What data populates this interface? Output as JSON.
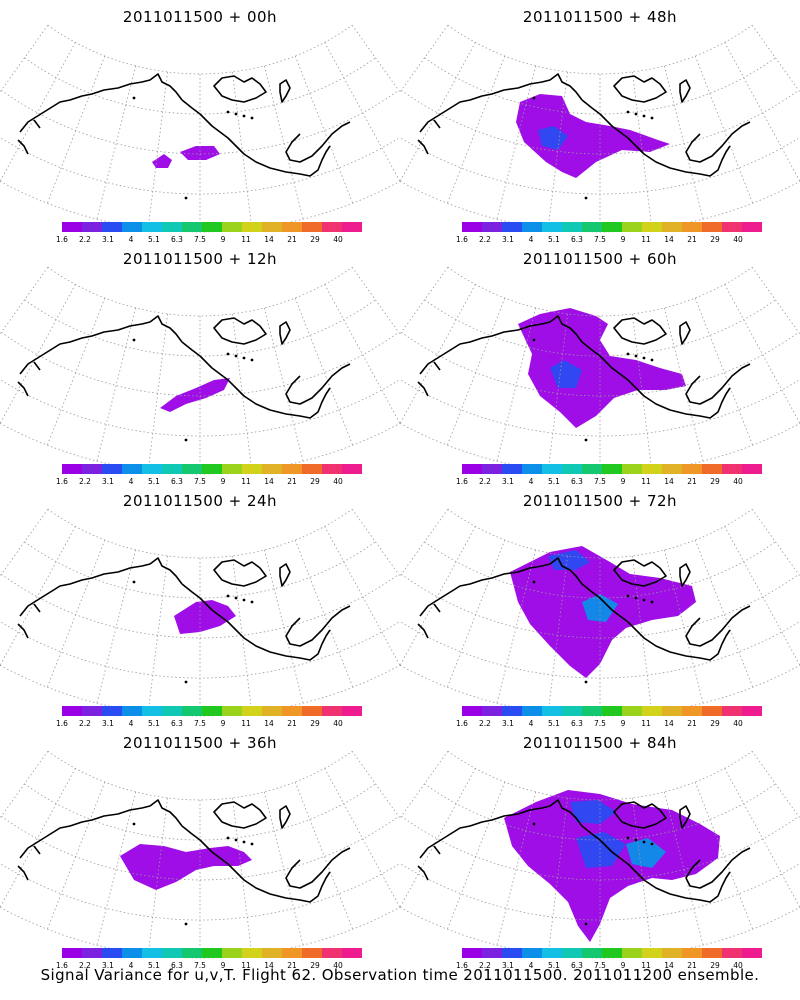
{
  "panels": [
    {
      "title": "2011011500 + 00h",
      "lead_hours": 0
    },
    {
      "title": "2011011500 + 48h",
      "lead_hours": 48
    },
    {
      "title": "2011011500 + 12h",
      "lead_hours": 12
    },
    {
      "title": "2011011500 + 60h",
      "lead_hours": 60
    },
    {
      "title": "2011011500 + 24h",
      "lead_hours": 24
    },
    {
      "title": "2011011500 + 72h",
      "lead_hours": 72
    },
    {
      "title": "2011011500 + 36h",
      "lead_hours": 36
    },
    {
      "title": "2011011500 + 84h",
      "lead_hours": 84
    }
  ],
  "colorbar": {
    "labels": [
      "1.6",
      "2.2",
      "3.1",
      "4",
      "5.1",
      "6.3",
      "7.5",
      "9",
      "11",
      "14",
      "21",
      "29",
      "40"
    ],
    "colors": [
      "#9a00e6",
      "#7a22e0",
      "#2a4bf2",
      "#0c8fe8",
      "#14bfe6",
      "#10c9b4",
      "#14c870",
      "#20c820",
      "#9ad21c",
      "#d2d21a",
      "#e2b226",
      "#f09626",
      "#f06a2a",
      "#f03270",
      "#ee1c8e"
    ]
  },
  "caption": "Signal Variance for u,v,T. Flight 62. Observation time 2011011500. 2011011200 ensemble."
}
